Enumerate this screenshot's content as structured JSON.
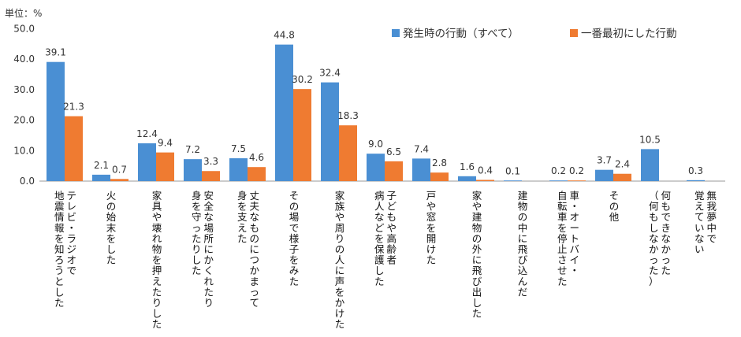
{
  "chart_data": {
    "type": "bar",
    "unit_label": "単位：%",
    "ylim": [
      0,
      50
    ],
    "yticks": [
      "0.0",
      "10.0",
      "20.0",
      "30.0",
      "40.0",
      "50.0"
    ],
    "grid": false,
    "legend_position": "top-right",
    "series": [
      {
        "name": "発生時の行動（すべて）",
        "color": "#4a8fd3",
        "values": [
          39.1,
          2.1,
          12.4,
          7.2,
          7.5,
          44.8,
          32.4,
          9.0,
          7.4,
          1.6,
          0.1,
          0.2,
          3.7,
          10.5,
          0.3
        ],
        "labels": [
          "39.1",
          "2.1",
          "12.4",
          "7.2",
          "7.5",
          "44.8",
          "32.4",
          "9.0",
          "7.4",
          "1.6",
          "0.1",
          "0.2",
          "3.7",
          "10.5",
          "0.3"
        ]
      },
      {
        "name": "一番最初にした行動",
        "color": "#ef7b31",
        "values": [
          21.3,
          0.7,
          9.4,
          3.3,
          4.6,
          30.2,
          18.3,
          6.5,
          2.8,
          0.4,
          null,
          0.2,
          2.4,
          null,
          null
        ],
        "labels": [
          "21.3",
          "0.7",
          "9.4",
          "3.3",
          "4.6",
          "30.2",
          "18.3",
          "6.5",
          "2.8",
          "0.4",
          "",
          "0.2",
          "2.4",
          "",
          ""
        ]
      }
    ],
    "categories": [
      [
        "テレビ・ラジオで",
        "地震情報を知ろうとした"
      ],
      [
        "火の始末をした"
      ],
      [
        "家具や壊れ物を押えたりした"
      ],
      [
        "安全な場所にかくれたり",
        "身を守ったりした"
      ],
      [
        "丈夫なものにつかまって",
        "身を支えた"
      ],
      [
        "その場で様子をみた"
      ],
      [
        "家族や周りの人に声をかけた"
      ],
      [
        "子どもや高齢者",
        "病人などを保護した"
      ],
      [
        "戸や窓を開けた"
      ],
      [
        "家や建物の外に飛び出した"
      ],
      [
        "建物の中に飛び込んだ"
      ],
      [
        "車・オートバイ・",
        "自転車を停止させた"
      ],
      [
        "その他"
      ],
      [
        "何もできなかった",
        "（何もしなかった）"
      ],
      [
        "無我夢中で",
        "覚えていない"
      ]
    ]
  }
}
